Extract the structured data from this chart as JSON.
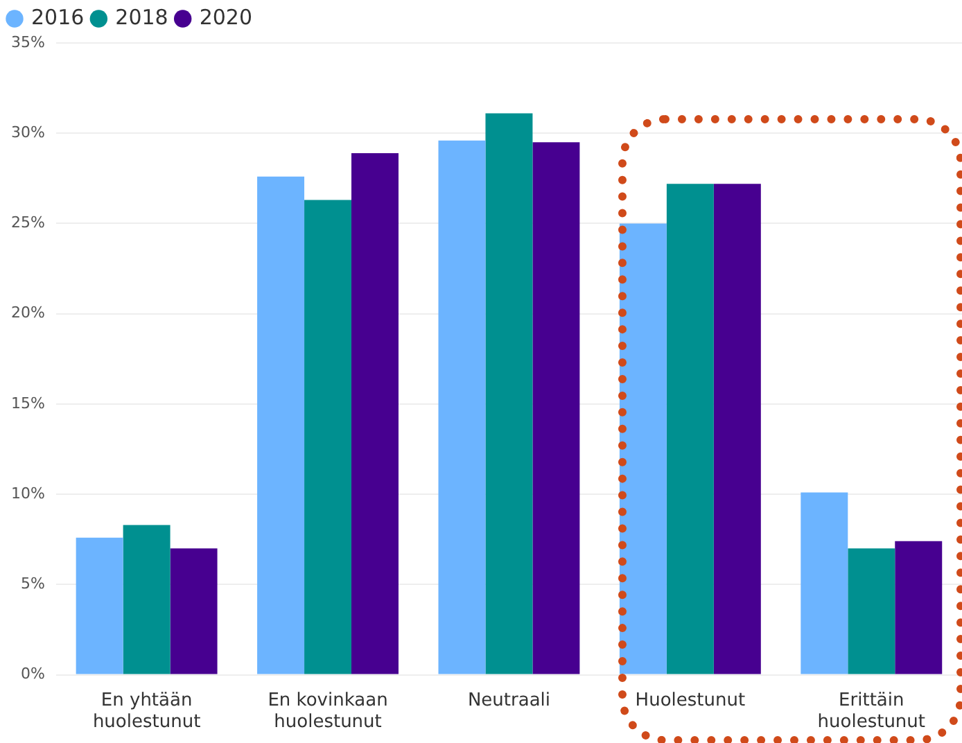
{
  "chart_data": {
    "type": "bar",
    "categories": [
      [
        "En yhtään",
        "huolestunut"
      ],
      [
        "En kovinkaan",
        "huolestunut"
      ],
      "Neutraali",
      "Huolestunut",
      [
        "Erittäin",
        "huolestunut"
      ]
    ],
    "series": [
      {
        "name": "2016",
        "color": "#6cb4ff",
        "values": [
          7.6,
          27.6,
          29.6,
          25.0,
          10.1
        ]
      },
      {
        "name": "2018",
        "color": "#009090",
        "values": [
          8.3,
          26.3,
          31.1,
          27.2,
          7.0
        ]
      },
      {
        "name": "2020",
        "color": "#470090",
        "values": [
          7.0,
          28.9,
          29.5,
          27.2,
          7.4
        ]
      }
    ],
    "ylim": [
      0,
      35
    ],
    "yticks": [
      {
        "value": 0,
        "label": "0%"
      },
      {
        "value": 5,
        "label": "5%"
      },
      {
        "value": 10,
        "label": "10%"
      },
      {
        "value": 15,
        "label": "15%"
      },
      {
        "value": 20,
        "label": "20%"
      },
      {
        "value": 25,
        "label": "25%"
      },
      {
        "value": 30,
        "label": "30%"
      },
      {
        "value": 35,
        "label": "35%"
      }
    ],
    "grid": "y",
    "legend": "top left"
  }
}
